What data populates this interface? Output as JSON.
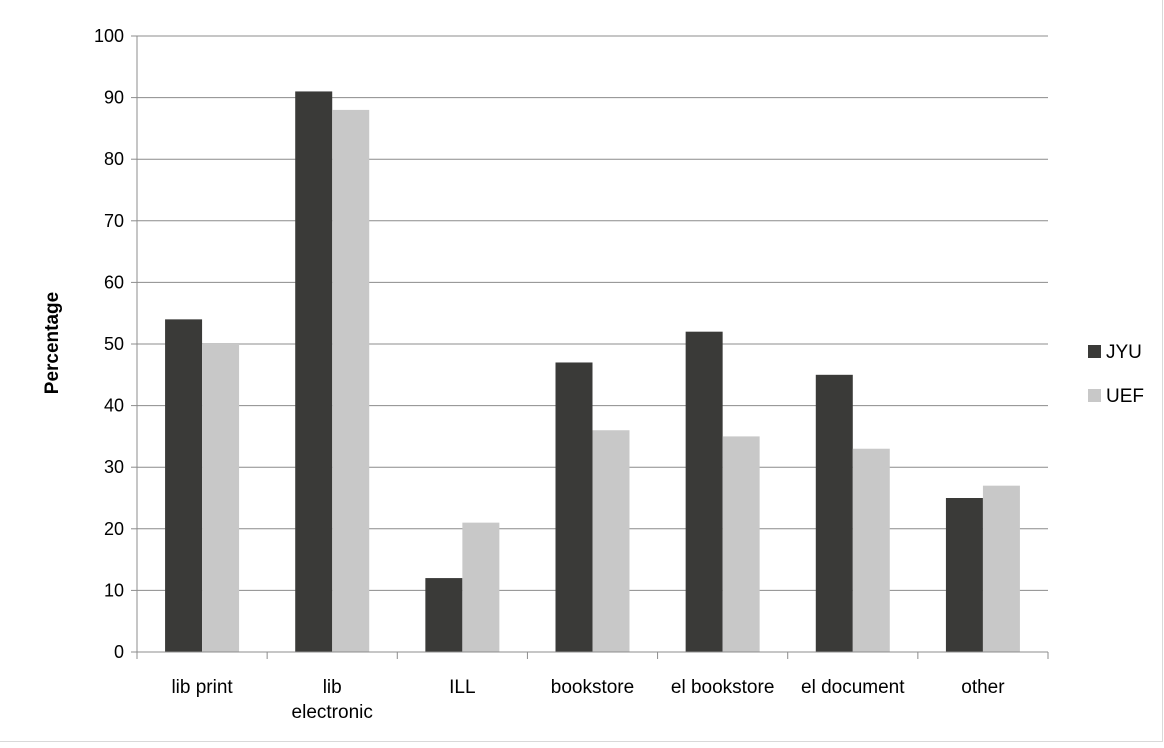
{
  "chart_data": {
    "type": "bar",
    "title": "",
    "xlabel": "",
    "ylabel": "Percentage",
    "ylim": [
      0,
      100
    ],
    "yticks": [
      "0",
      "10",
      "20",
      "30",
      "40",
      "50",
      "60",
      "70",
      "80",
      "90",
      "100"
    ],
    "grid": true,
    "legend_position": "right",
    "categories": [
      [
        "lib print"
      ],
      [
        "lib",
        "electronic"
      ],
      [
        "ILL"
      ],
      [
        "bookstore"
      ],
      [
        "el bookstore"
      ],
      [
        "el document"
      ],
      [
        "other"
      ]
    ],
    "series": [
      {
        "name": "JYU",
        "color": "#3a3a38",
        "values": [
          54,
          91,
          12,
          47,
          52,
          45,
          25
        ]
      },
      {
        "name": "UEF",
        "color": "#c8c8c8",
        "values": [
          50,
          88,
          21,
          36,
          35,
          33,
          27
        ]
      }
    ]
  }
}
